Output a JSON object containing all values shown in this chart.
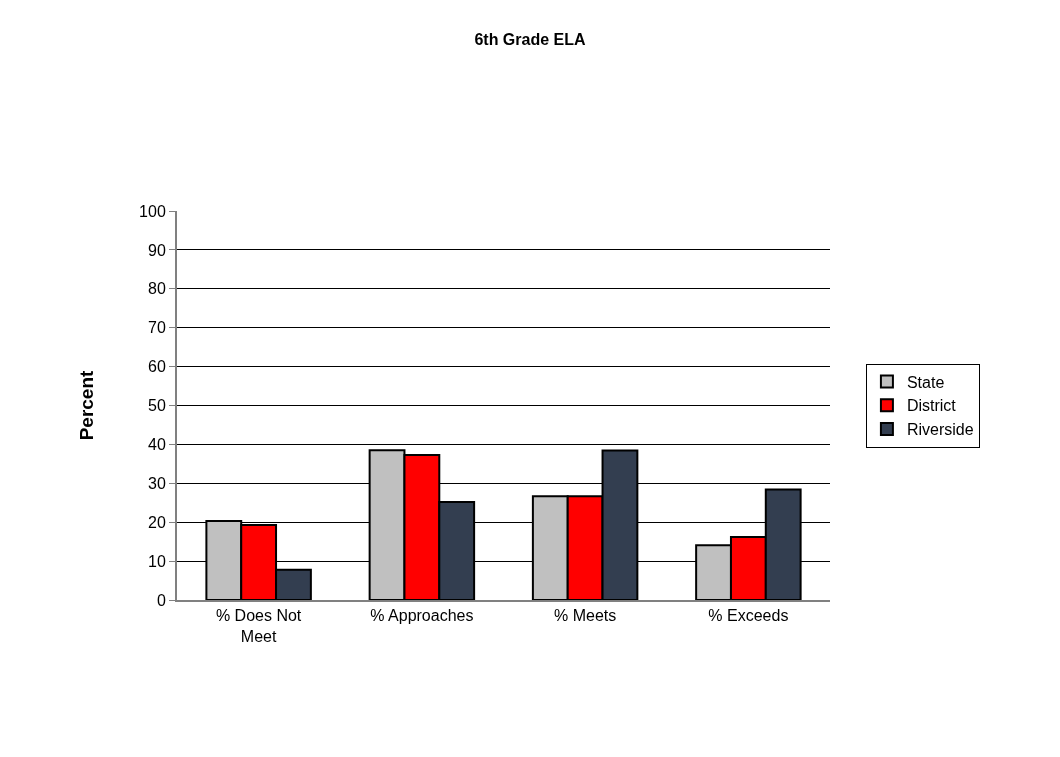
{
  "chart_data": {
    "type": "bar",
    "title": "6th Grade ELA",
    "ylabel": "Percent",
    "categories": [
      "% Does Not Meet",
      "% Approaches",
      "% Meets",
      "% Exceeds"
    ],
    "series": [
      {
        "name": "State",
        "color": "#c0c0c0",
        "values": [
          20.3,
          38.5,
          26.7,
          14.1
        ]
      },
      {
        "name": "District",
        "color": "#ff0000",
        "values": [
          19.3,
          37.3,
          26.7,
          16.2
        ]
      },
      {
        "name": "Riverside",
        "color": "#333e50",
        "values": [
          7.8,
          25.2,
          38.4,
          28.4
        ]
      }
    ],
    "ylim": [
      0,
      100
    ],
    "yticks": [
      0,
      10,
      20,
      30,
      40,
      50,
      60,
      70,
      80,
      90,
      100
    ],
    "grid": "y",
    "legend": "right"
  }
}
